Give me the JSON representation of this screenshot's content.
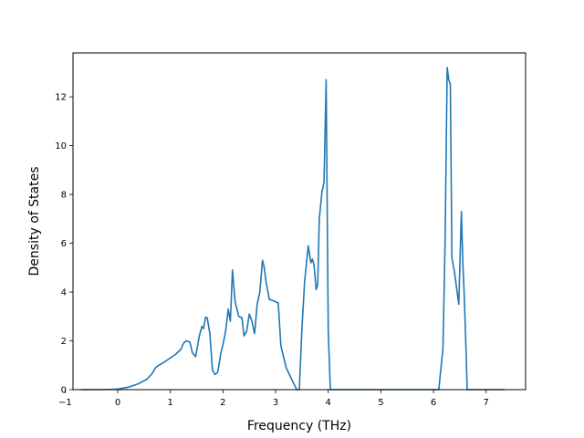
{
  "chart_data": {
    "type": "line",
    "title": "",
    "xlabel": "Frequency (THz)",
    "ylabel": "Density of States",
    "xlim": [
      -0.85,
      7.75
    ],
    "ylim": [
      0,
      13.8
    ],
    "xticks": [
      -1,
      0,
      1,
      2,
      3,
      4,
      5,
      6,
      7
    ],
    "yticks": [
      0,
      2,
      4,
      6,
      8,
      10,
      12
    ],
    "grid": false,
    "legend": "none",
    "line_color": "#1f77b4",
    "series": [
      {
        "x": [
          -0.7,
          -0.3,
          0.0,
          0.2,
          0.4,
          0.55,
          0.65,
          0.72,
          0.78,
          0.9,
          1.0,
          1.1,
          1.2,
          1.25,
          1.3,
          1.37,
          1.42,
          1.48,
          1.55,
          1.6,
          1.63,
          1.67,
          1.7,
          1.75,
          1.8,
          1.85,
          1.9,
          1.96,
          2.0,
          2.05,
          2.1,
          2.14,
          2.18,
          2.23,
          2.3,
          2.36,
          2.4,
          2.45,
          2.5,
          2.55,
          2.6,
          2.65,
          2.7,
          2.75,
          2.78,
          2.82,
          2.88,
          2.95,
          3.0,
          3.05,
          3.1,
          3.2,
          3.3,
          3.4,
          3.45,
          3.5,
          3.55,
          3.62,
          3.67,
          3.7,
          3.73,
          3.77,
          3.8,
          3.83,
          3.88,
          3.92,
          3.96,
          4.0,
          4.04,
          4.1,
          5.0,
          6.1,
          6.18,
          6.22,
          6.26,
          6.29,
          6.32,
          6.35,
          6.4,
          6.48,
          6.53,
          6.56,
          6.58,
          6.62,
          6.64,
          6.68,
          6.75,
          7.0,
          7.35
        ],
        "y": [
          0,
          0,
          0.02,
          0.1,
          0.25,
          0.42,
          0.65,
          0.9,
          1.0,
          1.15,
          1.3,
          1.45,
          1.65,
          1.9,
          2.0,
          1.95,
          1.5,
          1.35,
          2.2,
          2.6,
          2.5,
          2.97,
          2.95,
          2.3,
          0.8,
          0.62,
          0.7,
          1.5,
          1.85,
          2.4,
          3.3,
          2.8,
          4.9,
          3.6,
          3.0,
          2.95,
          2.2,
          2.4,
          3.1,
          2.8,
          2.3,
          3.5,
          4.0,
          5.3,
          5.05,
          4.4,
          3.7,
          3.65,
          3.6,
          3.55,
          1.8,
          0.9,
          0.45,
          0.0,
          0.0,
          2.5,
          4.4,
          5.9,
          5.2,
          5.35,
          5.1,
          4.1,
          4.3,
          7.0,
          8.1,
          8.5,
          12.7,
          2.4,
          0.0,
          0.0,
          0.0,
          0.0,
          1.7,
          6.0,
          13.2,
          12.7,
          12.5,
          5.4,
          4.8,
          3.5,
          7.3,
          5.0,
          4.1,
          1.5,
          0.0,
          0.0,
          0.0,
          0.0,
          0.0
        ]
      }
    ]
  }
}
